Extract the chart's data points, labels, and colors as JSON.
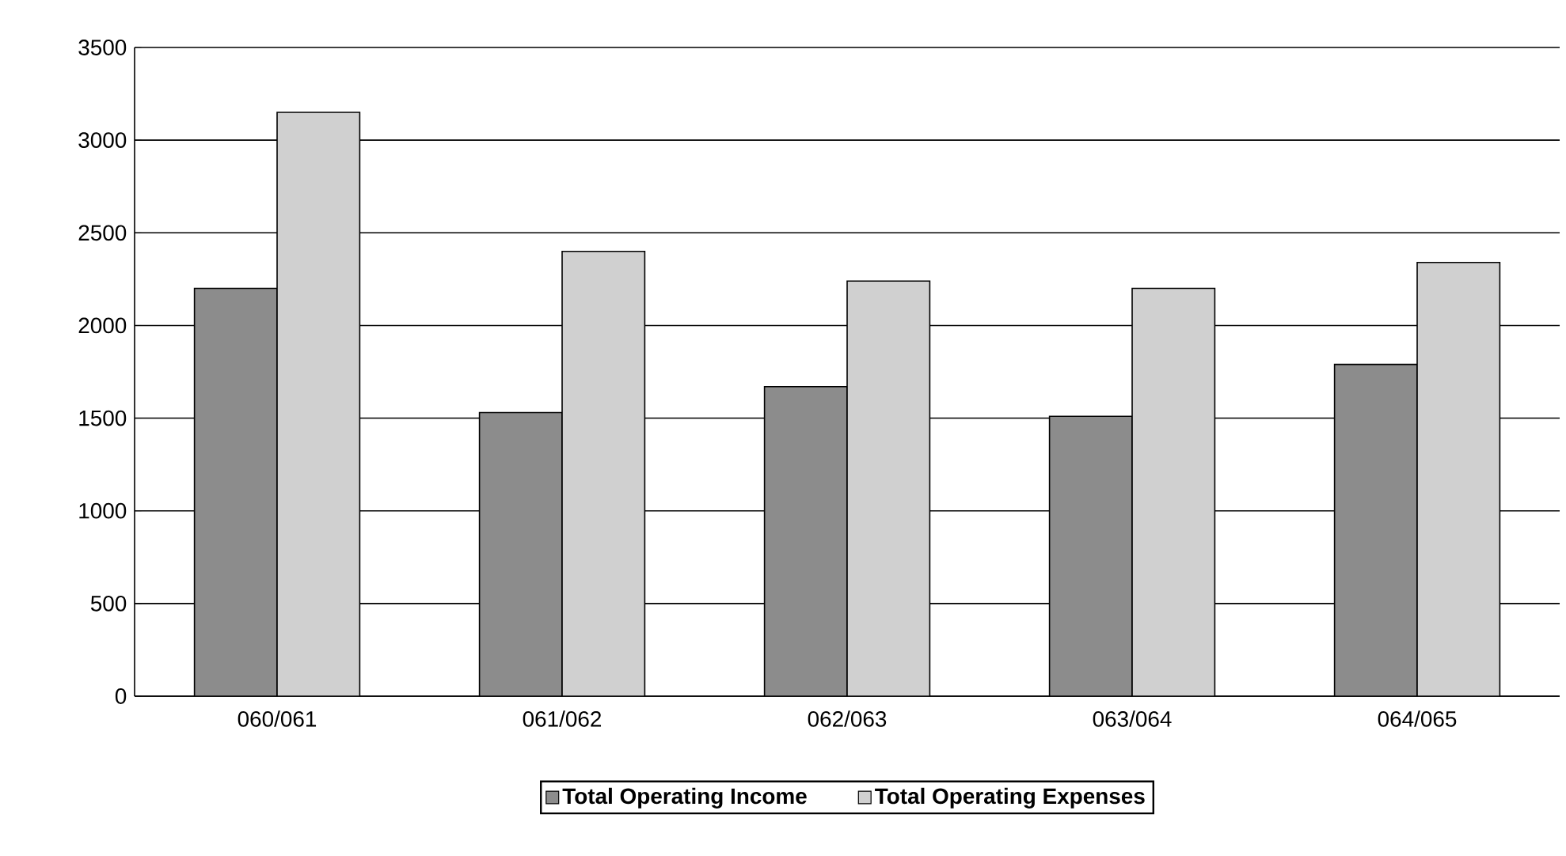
{
  "chart_data": {
    "type": "bar",
    "categories": [
      "060/061",
      "061/062",
      "062/063",
      "063/064",
      "064/065"
    ],
    "series": [
      {
        "name": "Total Operating Income",
        "color": "#8c8c8c",
        "values": [
          2200,
          1530,
          1670,
          1510,
          1790
        ]
      },
      {
        "name": "Total Operating Expenses",
        "color": "#d0d0d0",
        "values": [
          3150,
          2400,
          2240,
          2200,
          2340
        ]
      }
    ],
    "ylim": [
      0,
      3500
    ],
    "yticks": [
      0,
      500,
      1000,
      1500,
      2000,
      2500,
      3000,
      3500
    ],
    "grid": "y",
    "legend": "bottom"
  }
}
